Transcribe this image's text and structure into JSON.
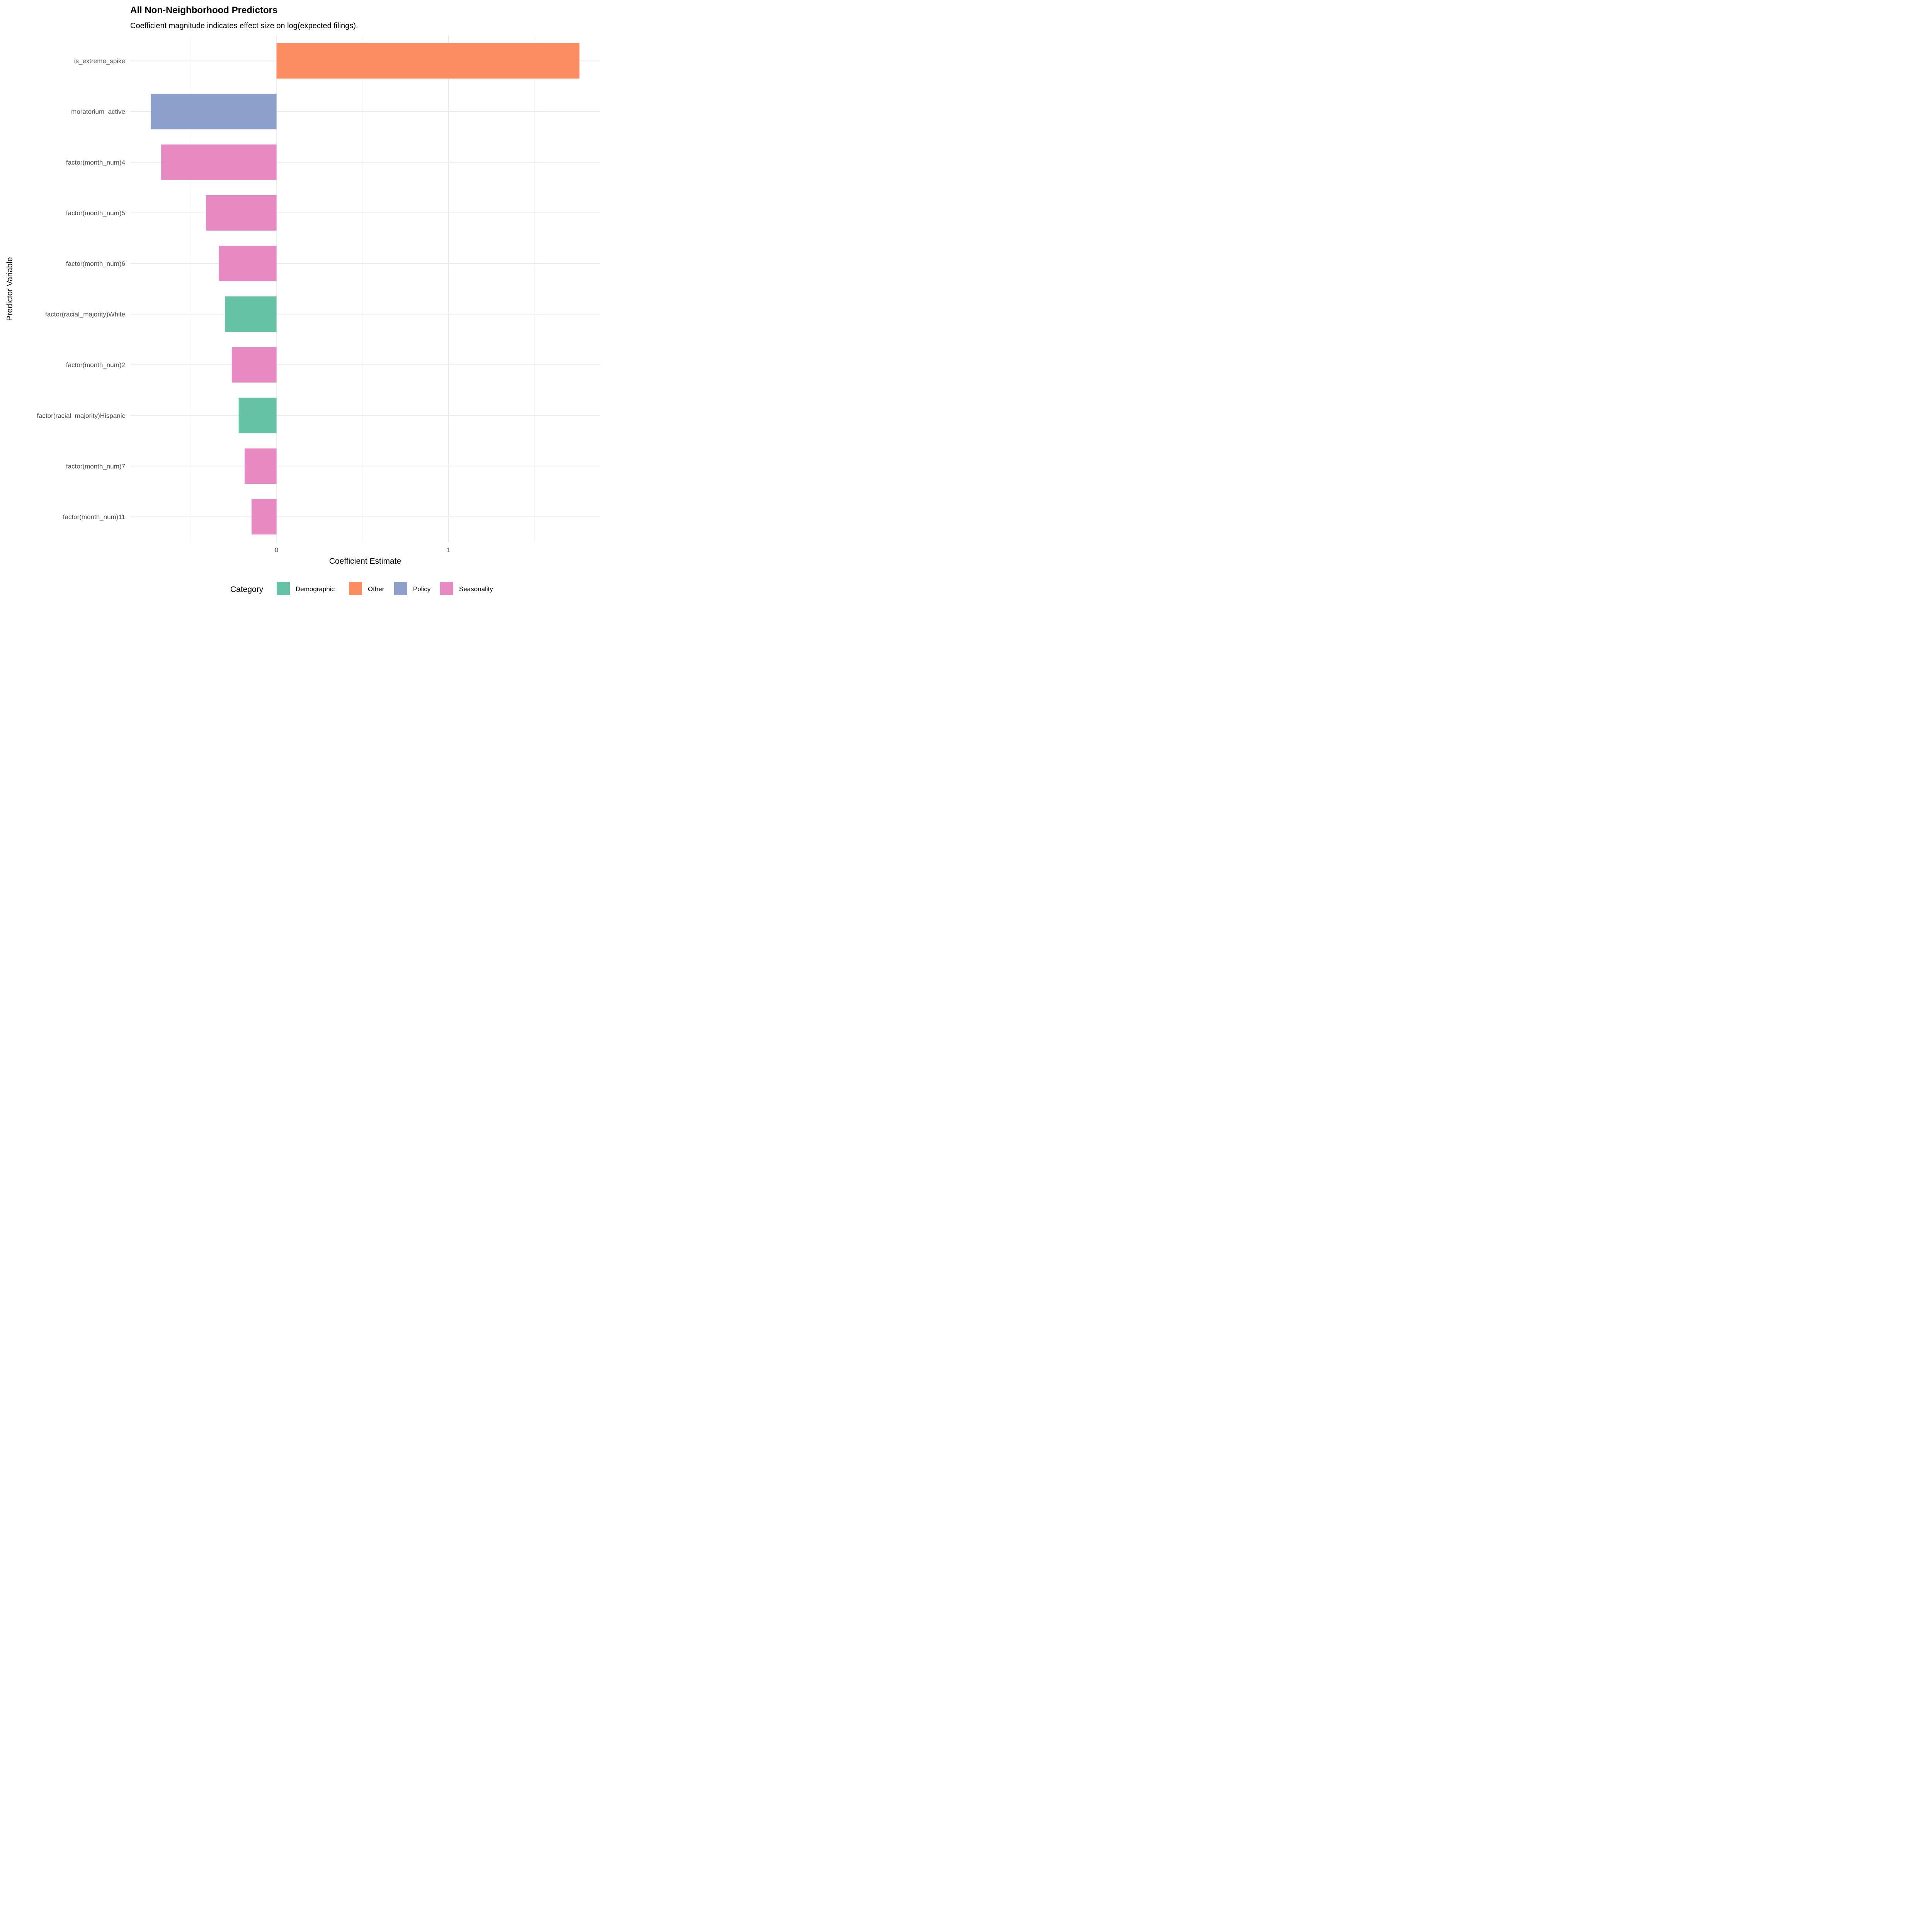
{
  "chart_data": {
    "type": "bar",
    "orientation": "horizontal",
    "title": "All Non-Neighborhood Predictors",
    "subtitle": "Coefficient magnitude indicates effect size on log(expected filings).",
    "xlabel": "Coefficient Estimate",
    "ylabel": "Predictor Variable",
    "xlim": [
      -0.85,
      1.88
    ],
    "xticks": [
      0,
      1
    ],
    "grid": true,
    "legend": {
      "title": "Category",
      "placement": "bottom",
      "entries": [
        {
          "name": "Demographic",
          "color": "#66c2a5"
        },
        {
          "name": "Other",
          "color": "#fc8d62"
        },
        {
          "name": "Policy",
          "color": "#8da0cb"
        },
        {
          "name": "Seasonality",
          "color": "#e78ac3"
        }
      ]
    },
    "categories": [
      "is_extreme_spike",
      "moratorium_active",
      "factor(month_num)4",
      "factor(month_num)5",
      "factor(month_num)6",
      "factor(racial_majority)White",
      "factor(month_num)2",
      "factor(racial_majority)Hispanic",
      "factor(month_num)7",
      "factor(month_num)11"
    ],
    "values": [
      1.76,
      -0.73,
      -0.67,
      -0.41,
      -0.335,
      -0.3,
      -0.26,
      -0.22,
      -0.185,
      -0.145
    ],
    "groups": [
      "Other",
      "Policy",
      "Seasonality",
      "Seasonality",
      "Seasonality",
      "Demographic",
      "Seasonality",
      "Demographic",
      "Seasonality",
      "Seasonality"
    ]
  }
}
